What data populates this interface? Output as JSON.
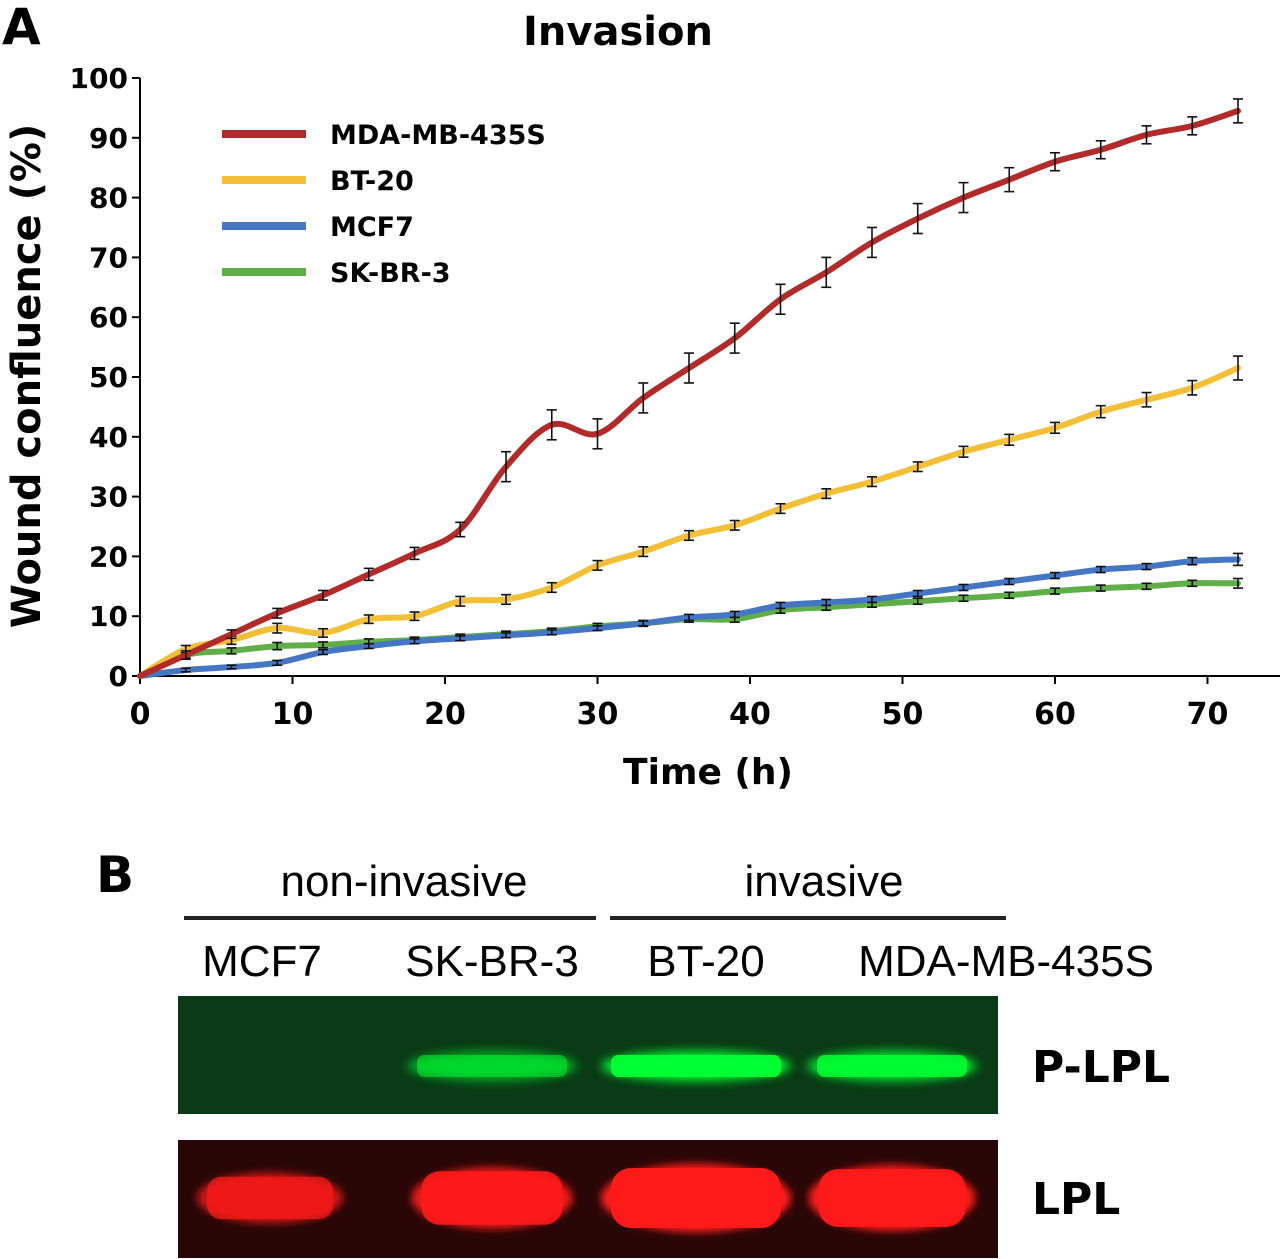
{
  "panel_a": {
    "label": "A",
    "chart_data": {
      "type": "line",
      "title": "Invasion",
      "xlabel": "Time (h)",
      "ylabel": "Wound confluence (%)",
      "xlim": [
        0,
        72
      ],
      "ylim": [
        0,
        100
      ],
      "xticks": [
        "0",
        "10",
        "20",
        "30",
        "40",
        "50",
        "60",
        "70"
      ],
      "yticks": [
        "0",
        "10",
        "20",
        "30",
        "40",
        "50",
        "60",
        "70",
        "80",
        "90",
        "100"
      ],
      "legend_position": "top-left",
      "grid": false,
      "error_bars": true,
      "x": [
        0,
        3,
        6,
        9,
        12,
        15,
        18,
        21,
        24,
        27,
        30,
        33,
        36,
        39,
        42,
        45,
        48,
        51,
        54,
        57,
        60,
        63,
        66,
        69,
        72
      ],
      "series": [
        {
          "name": "MDA-MB-435S",
          "color": "#b22a2a",
          "values": [
            0,
            3.5,
            7,
            10.5,
            13.5,
            17,
            20.5,
            24.5,
            35,
            42,
            40.5,
            46.5,
            51.5,
            56.5,
            63,
            67.5,
            72.5,
            76.5,
            80,
            83,
            86,
            88,
            90.5,
            92,
            94.5
          ],
          "errors": [
            0,
            0.7,
            0.7,
            0.8,
            0.8,
            1.0,
            1.0,
            1.2,
            2.5,
            2.5,
            2.5,
            2.5,
            2.5,
            2.5,
            2.5,
            2.5,
            2.5,
            2.5,
            2.5,
            2.0,
            1.5,
            1.5,
            1.5,
            1.5,
            2.0
          ]
        },
        {
          "name": "BT-20",
          "color": "#f3bf37",
          "values": [
            0,
            4.5,
            6,
            8,
            7.2,
            9.5,
            10,
            12.5,
            12.8,
            14.8,
            18.5,
            20.8,
            23.5,
            25.2,
            28,
            30.5,
            32.5,
            35,
            37.5,
            39.5,
            41.5,
            44.2,
            46.2,
            48.2,
            51.5
          ],
          "errors": [
            0,
            0.6,
            0.7,
            0.8,
            0.7,
            0.7,
            0.7,
            0.8,
            0.8,
            0.8,
            0.8,
            0.8,
            0.8,
            0.8,
            0.8,
            0.8,
            0.8,
            0.8,
            0.9,
            0.9,
            0.9,
            1.0,
            1.2,
            1.2,
            2.0
          ]
        },
        {
          "name": "MCF7",
          "color": "#4576c4",
          "values": [
            0,
            1,
            1.5,
            2.2,
            4,
            5,
            5.8,
            6.3,
            6.8,
            7.3,
            8.0,
            8.8,
            9.8,
            10.3,
            11.8,
            12.3,
            12.8,
            13.8,
            14.8,
            15.8,
            16.8,
            17.8,
            18.3,
            19.2,
            19.5
          ],
          "errors": [
            0,
            0.3,
            0.3,
            0.4,
            0.4,
            0.4,
            0.4,
            0.4,
            0.4,
            0.4,
            0.4,
            0.4,
            0.5,
            0.5,
            0.5,
            0.5,
            0.5,
            0.5,
            0.5,
            0.5,
            0.5,
            0.5,
            0.5,
            0.6,
            1.0
          ]
        },
        {
          "name": "SK-BR-3",
          "color": "#5fae48",
          "values": [
            0,
            3.5,
            4.2,
            5.0,
            5.2,
            5.7,
            6.0,
            6.5,
            7.0,
            7.5,
            8.3,
            8.8,
            9.5,
            9.5,
            11.0,
            11.5,
            12.0,
            12.5,
            13.0,
            13.5,
            14.2,
            14.7,
            15.0,
            15.5,
            15.5
          ],
          "errors": [
            0,
            0.5,
            0.5,
            0.6,
            0.5,
            0.5,
            0.5,
            0.5,
            0.5,
            0.5,
            0.5,
            0.5,
            0.5,
            0.5,
            0.5,
            0.5,
            0.5,
            0.5,
            0.5,
            0.5,
            0.5,
            0.5,
            0.5,
            0.5,
            0.8
          ]
        }
      ]
    }
  },
  "panel_b": {
    "label": "B",
    "groups": [
      "non-invasive",
      "invasive"
    ],
    "lanes": [
      "MCF7",
      "SK-BR-3",
      "BT-20",
      "MDA-MB-435S"
    ],
    "blots": [
      {
        "name": "P-LPL",
        "color": "#00ff33",
        "background": "#0a3a16",
        "intensity": [
          0.0,
          0.35,
          0.95,
          0.8
        ]
      },
      {
        "name": "LPL",
        "color": "#ff1a1a",
        "background": "#2a0707",
        "intensity": [
          0.6,
          0.85,
          1.0,
          0.95
        ]
      }
    ]
  }
}
